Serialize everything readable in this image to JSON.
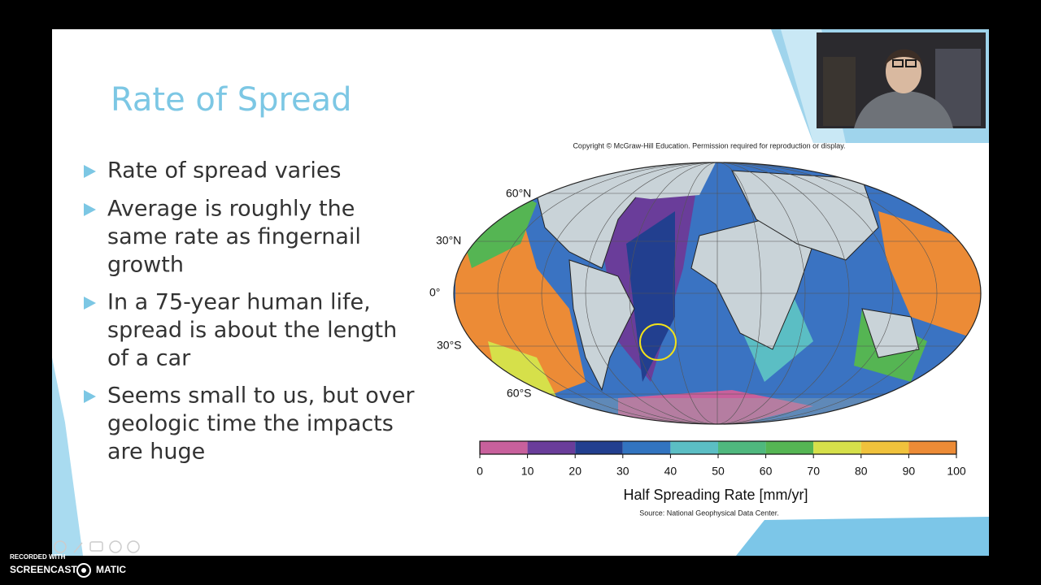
{
  "slide": {
    "title": "Rate of Spread",
    "bullets": [
      [
        "Rate of spread varies"
      ],
      [
        "Average is roughly the",
        "same rate as fingernail",
        "growth"
      ],
      [
        "In a 75-year human life,",
        "spread is about the length",
        "of a car"
      ],
      [
        "Seems small to us, but over",
        "geologic time the impacts",
        "are huge"
      ]
    ]
  },
  "figure": {
    "copyright": "Copyright © McGraw-Hill Education. Permission required for reproduction or display.",
    "latitude_labels": [
      "60°N",
      "30°N",
      "0°",
      "30°S",
      "60°S"
    ],
    "colorbar": {
      "ticks": [
        0,
        10,
        20,
        30,
        40,
        50,
        60,
        70,
        80,
        90,
        100
      ],
      "colors": [
        "#c8609c",
        "#6a3d9a",
        "#223f8f",
        "#3274c0",
        "#5bbec4",
        "#4fb87e",
        "#55b553",
        "#d6e04a",
        "#f0c23c",
        "#ec8b36"
      ],
      "label": "Half Spreading Rate [mm/yr]"
    },
    "source": "Source: National Geophysical Data Center."
  },
  "recorder": {
    "recorded_with": "RECORDED WITH",
    "brand_left": "SCREENCAST",
    "brand_right": "MATIC"
  }
}
